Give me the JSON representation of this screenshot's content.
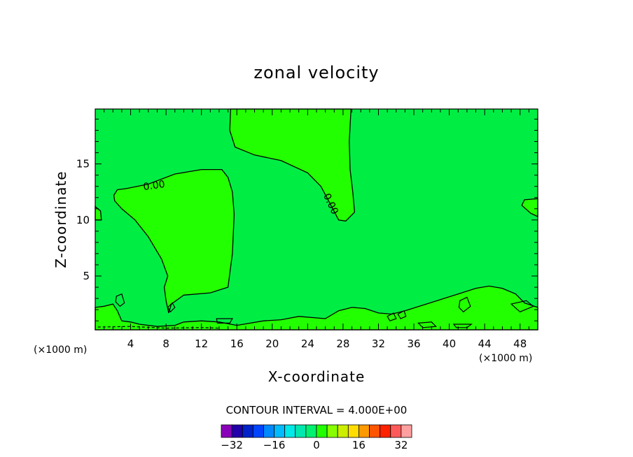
{
  "chart_data": {
    "type": "heatmap",
    "title": "zonal velocity",
    "xlabel": "X-coordinate",
    "ylabel": "Z-coordinate",
    "x_unit": "(×1000 m)",
    "x_unit_right": "(×1000 m)",
    "xlim": [
      0,
      50
    ],
    "ylim": [
      0.2,
      19.9
    ],
    "x_ticks": [
      "4",
      "8",
      "12",
      "16",
      "20",
      "24",
      "28",
      "32",
      "36",
      "40",
      "44",
      "48"
    ],
    "y_ticks": [
      "5",
      "10",
      "15"
    ],
    "contour_labels": [
      "0.00",
      "0.00"
    ],
    "contour_interval_text": "CONTOUR INTERVAL = 4.000E+00",
    "contour_interval": 4.0,
    "colorbar": {
      "tick_labels": [
        "−32",
        "−16",
        "0",
        "16",
        "32"
      ],
      "colors": [
        "#8a00b8",
        "#2200aa",
        "#0022c8",
        "#0044ff",
        "#0088ff",
        "#00bbff",
        "#00e8e8",
        "#00e8b0",
        "#00f070",
        "#22ff00",
        "#88ff00",
        "#ccee00",
        "#ffdd00",
        "#ff9900",
        "#ff5500",
        "#ff2200",
        "#ff5a5a",
        "#ffa0a0"
      ]
    },
    "background_color": "#00ee44",
    "positive_region_color": "#22ff00"
  }
}
